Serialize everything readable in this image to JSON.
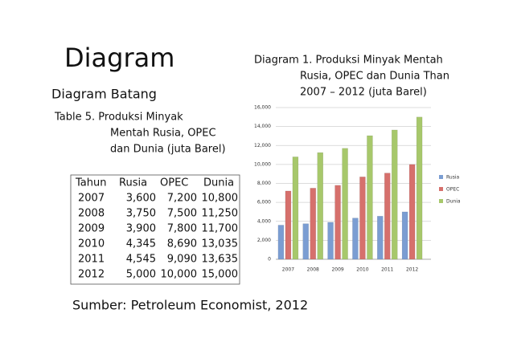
{
  "slide": {
    "title": "Diagram",
    "subtitle": "Diagram Batang",
    "table_caption": [
      "Table 5. Produksi Minyak",
      "Mentah Rusia, OPEC",
      "dan Dunia (juta Barel)"
    ],
    "table": {
      "header": [
        "Tahun",
        "Rusia",
        "OPEC",
        "Dunia"
      ],
      "rows": [
        [
          "2007",
          "3,600",
          "7,200",
          "10,800"
        ],
        [
          "2008",
          "3,750",
          "7,500",
          "11,250"
        ],
        [
          "2009",
          "3,900",
          "7,800",
          "11,700"
        ],
        [
          "2010",
          "4,345",
          "8,690",
          "13,035"
        ],
        [
          "2011",
          "4,545",
          "9,090",
          "13,635"
        ],
        [
          "2012",
          "5,000",
          "10,000",
          "15,000"
        ]
      ]
    },
    "source": "Sumber: Petroleum Economist, 2012"
  },
  "chart_data": {
    "type": "bar",
    "title": [
      "Diagram 1. Produksi Minyak Mentah",
      "Rusia, OPEC dan Dunia Than",
      "2007 – 2012 (juta Barel)"
    ],
    "categories": [
      "2007",
      "2008",
      "2009",
      "2010",
      "2011",
      "2012"
    ],
    "series": [
      {
        "name": "Rusia",
        "color": "#7b9dd2",
        "values": [
          3600,
          3750,
          3900,
          4345,
          4545,
          5000
        ]
      },
      {
        "name": "OPEC",
        "color": "#d6706c",
        "values": [
          7200,
          7500,
          7800,
          8690,
          9090,
          10000
        ]
      },
      {
        "name": "Dunia",
        "color": "#a7c86b",
        "values": [
          10800,
          11250,
          11700,
          13035,
          13635,
          15000
        ]
      }
    ],
    "ylim": [
      0,
      16000
    ],
    "yticks": [
      0,
      {
        "value": 2000,
        "label": "2,000"
      },
      {
        "value": 4000,
        "label": "4,000"
      },
      {
        "value": 6000,
        "label": "6,000"
      },
      {
        "value": 8000,
        "label": "8,000"
      },
      {
        "value": 10000,
        "label": "10,000"
      },
      {
        "value": 12000,
        "label": "12,000"
      },
      {
        "value": 14000,
        "label": "14,000"
      },
      {
        "value": 16000,
        "label": "16,000"
      }
    ],
    "grid": true,
    "legend": "right"
  }
}
